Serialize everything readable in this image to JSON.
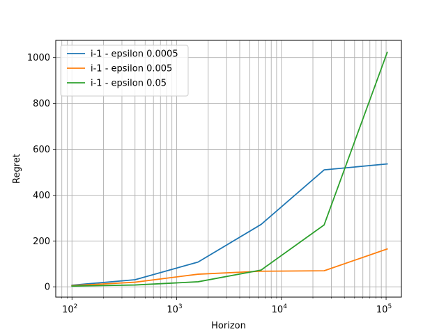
{
  "chart_data": {
    "type": "line",
    "xlabel": "Horizon",
    "ylabel": "Regret",
    "xscale": "log",
    "xlim": [
      70,
      140000
    ],
    "ylim": [
      -45,
      1075
    ],
    "x": [
      100,
      400,
      1600,
      6400,
      25600,
      102400
    ],
    "xticks": [
      {
        "value": 100,
        "base": "10",
        "exp": "2"
      },
      {
        "value": 1000,
        "base": "10",
        "exp": "3"
      },
      {
        "value": 10000,
        "base": "10",
        "exp": "4"
      },
      {
        "value": 100000,
        "base": "10",
        "exp": "5"
      }
    ],
    "yticks": [
      0,
      200,
      400,
      600,
      800,
      1000
    ],
    "grid": true,
    "legend_position": "top-left",
    "series": [
      {
        "name": "i-1 - epsilon 0.0005",
        "color": "#1f77b4",
        "values": [
          7,
          31,
          108,
          272,
          510,
          536
        ]
      },
      {
        "name": "i-1 - epsilon 0.005",
        "color": "#ff7f0e",
        "values": [
          5,
          20,
          55,
          68,
          70,
          165
        ]
      },
      {
        "name": "i-1 - epsilon 0.05",
        "color": "#2ca02c",
        "values": [
          3,
          8,
          22,
          73,
          270,
          1022
        ]
      }
    ]
  }
}
